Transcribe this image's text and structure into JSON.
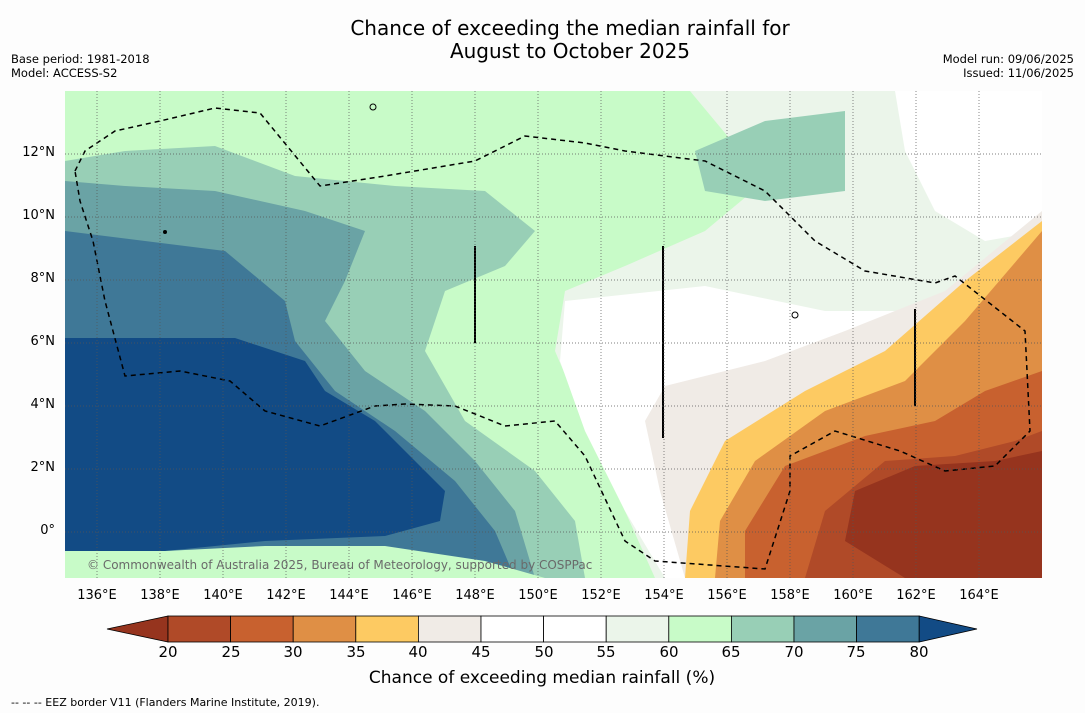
{
  "title_line1": "Chance of exceeding the median rainfall for",
  "title_line2": "August to October 2025",
  "base_period": "Base period: 1981-2018",
  "model": "Model: ACCESS-S2",
  "model_run": "Model run: 09/06/2025",
  "issued": "Issued: 11/06/2025",
  "copyright": "© Commonwealth of Australia 2025, Bureau of Meteorology, supported by COSPPac",
  "lat_labels": [
    "12°N",
    "10°N",
    "8°N",
    "6°N",
    "4°N",
    "2°N",
    "0°"
  ],
  "lon_labels": [
    "136°E",
    "138°E",
    "140°E",
    "142°E",
    "144°E",
    "146°E",
    "148°E",
    "150°E",
    "152°E",
    "154°E",
    "156°E",
    "158°E",
    "160°E",
    "162°E",
    "164°E"
  ],
  "colorbar": {
    "title": "Chance of exceeding median rainfall (%)",
    "ticks": [
      "20",
      "25",
      "30",
      "35",
      "40",
      "45",
      "50",
      "55",
      "60",
      "65",
      "70",
      "75",
      "80"
    ],
    "colors": [
      "#b04a28",
      "#c8612f",
      "#df8f45",
      "#fdca62",
      "#f0ebe6",
      "#ffffff",
      "#ffffff",
      "#ebf5ea",
      "#c8fbc8",
      "#98cfb6",
      "#6aa3a5",
      "#3f7897"
    ],
    "under_color": "#96341e",
    "over_color": "#124b85"
  },
  "footnote": "--  --  -- EEZ border V11 (Flanders Marine Institute, 2019)."
}
